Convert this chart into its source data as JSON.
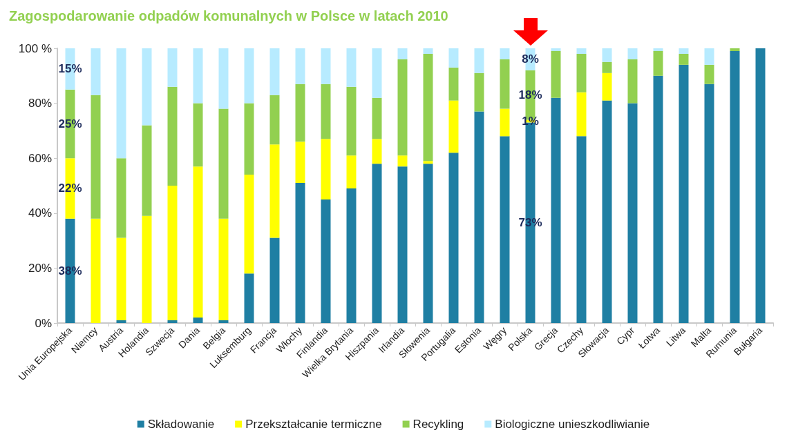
{
  "chart_data": {
    "type": "bar",
    "title": "Zagospodarowanie odpadów komunalnych w Polsce w latach 2010",
    "categories": [
      "Unia Europejska",
      "Niemcy",
      "Austria",
      "Holandia",
      "Szwecja",
      "Dania",
      "Belgia",
      "Luksemburg",
      "Francja",
      "Włochy",
      "Finlandia",
      "Wielka Brytania",
      "Hiszpania",
      "Irlandia",
      "Słowenia",
      "Portugalia",
      "Estonia",
      "Węgry",
      "Polska",
      "Grecja",
      "Czechy",
      "Słowacja",
      "Cypr",
      "Łotwa",
      "Litwa",
      "Malta",
      "Rumunia",
      "Bułgaria"
    ],
    "stacked": true,
    "series": [
      {
        "name": "Składowanie",
        "color": "#1f7fa3",
        "values": [
          38,
          0,
          1,
          0,
          1,
          2,
          1,
          18,
          31,
          51,
          45,
          49,
          58,
          57,
          58,
          62,
          77,
          68,
          73,
          82,
          68,
          81,
          80,
          90,
          94,
          87,
          99,
          100
        ],
        "value_labels": [
          "38%",
          null,
          null,
          null,
          null,
          null,
          null,
          null,
          null,
          null,
          null,
          null,
          null,
          null,
          null,
          null,
          null,
          null,
          "73%",
          null,
          null,
          null,
          null,
          null,
          null,
          null,
          null,
          null
        ]
      },
      {
        "name": "Przekształcanie termiczne",
        "color": "#ffff00",
        "values": [
          22,
          38,
          30,
          39,
          49,
          55,
          37,
          36,
          34,
          15,
          22,
          12,
          9,
          4,
          1,
          19,
          0,
          10,
          1,
          0,
          16,
          10,
          0,
          0,
          0,
          0,
          0,
          0
        ],
        "value_labels": [
          "22%",
          null,
          null,
          null,
          null,
          null,
          null,
          null,
          null,
          null,
          null,
          null,
          null,
          null,
          null,
          null,
          null,
          null,
          "1%",
          null,
          null,
          null,
          null,
          null,
          null,
          null,
          null,
          null
        ]
      },
      {
        "name": "Recykling",
        "color": "#92d050",
        "values": [
          25,
          45,
          29,
          33,
          36,
          23,
          40,
          26,
          18,
          21,
          20,
          25,
          15,
          35,
          39,
          12,
          14,
          18,
          18,
          17,
          14,
          4,
          16,
          9,
          4,
          7,
          1,
          0
        ],
        "value_labels": [
          "25%",
          null,
          null,
          null,
          null,
          null,
          null,
          null,
          null,
          null,
          null,
          null,
          null,
          null,
          null,
          null,
          null,
          null,
          "18%",
          null,
          null,
          null,
          null,
          null,
          null,
          null,
          null,
          null
        ]
      },
      {
        "name": "Biologiczne unieszkodliwianie",
        "color": "#b7ebff",
        "values": [
          15,
          17,
          40,
          28,
          14,
          20,
          22,
          20,
          17,
          13,
          13,
          14,
          18,
          4,
          2,
          7,
          9,
          4,
          8,
          1,
          2,
          5,
          4,
          1,
          2,
          6,
          0,
          0
        ],
        "value_labels": [
          "15%",
          null,
          null,
          null,
          null,
          null,
          null,
          null,
          null,
          null,
          null,
          null,
          null,
          null,
          null,
          null,
          null,
          null,
          "8%",
          null,
          null,
          null,
          null,
          null,
          null,
          null,
          null,
          null
        ]
      }
    ],
    "ylim": [
      0,
      100
    ],
    "yticks": [
      {
        "value": 0,
        "label": "0%"
      },
      {
        "value": 20,
        "label": "20%"
      },
      {
        "value": 40,
        "label": "40%"
      },
      {
        "value": 60,
        "label": "60%"
      },
      {
        "value": 80,
        "label": "80%"
      },
      {
        "value": 100,
        "label": "100 %"
      }
    ],
    "grid": false,
    "legend": "bottom"
  }
}
